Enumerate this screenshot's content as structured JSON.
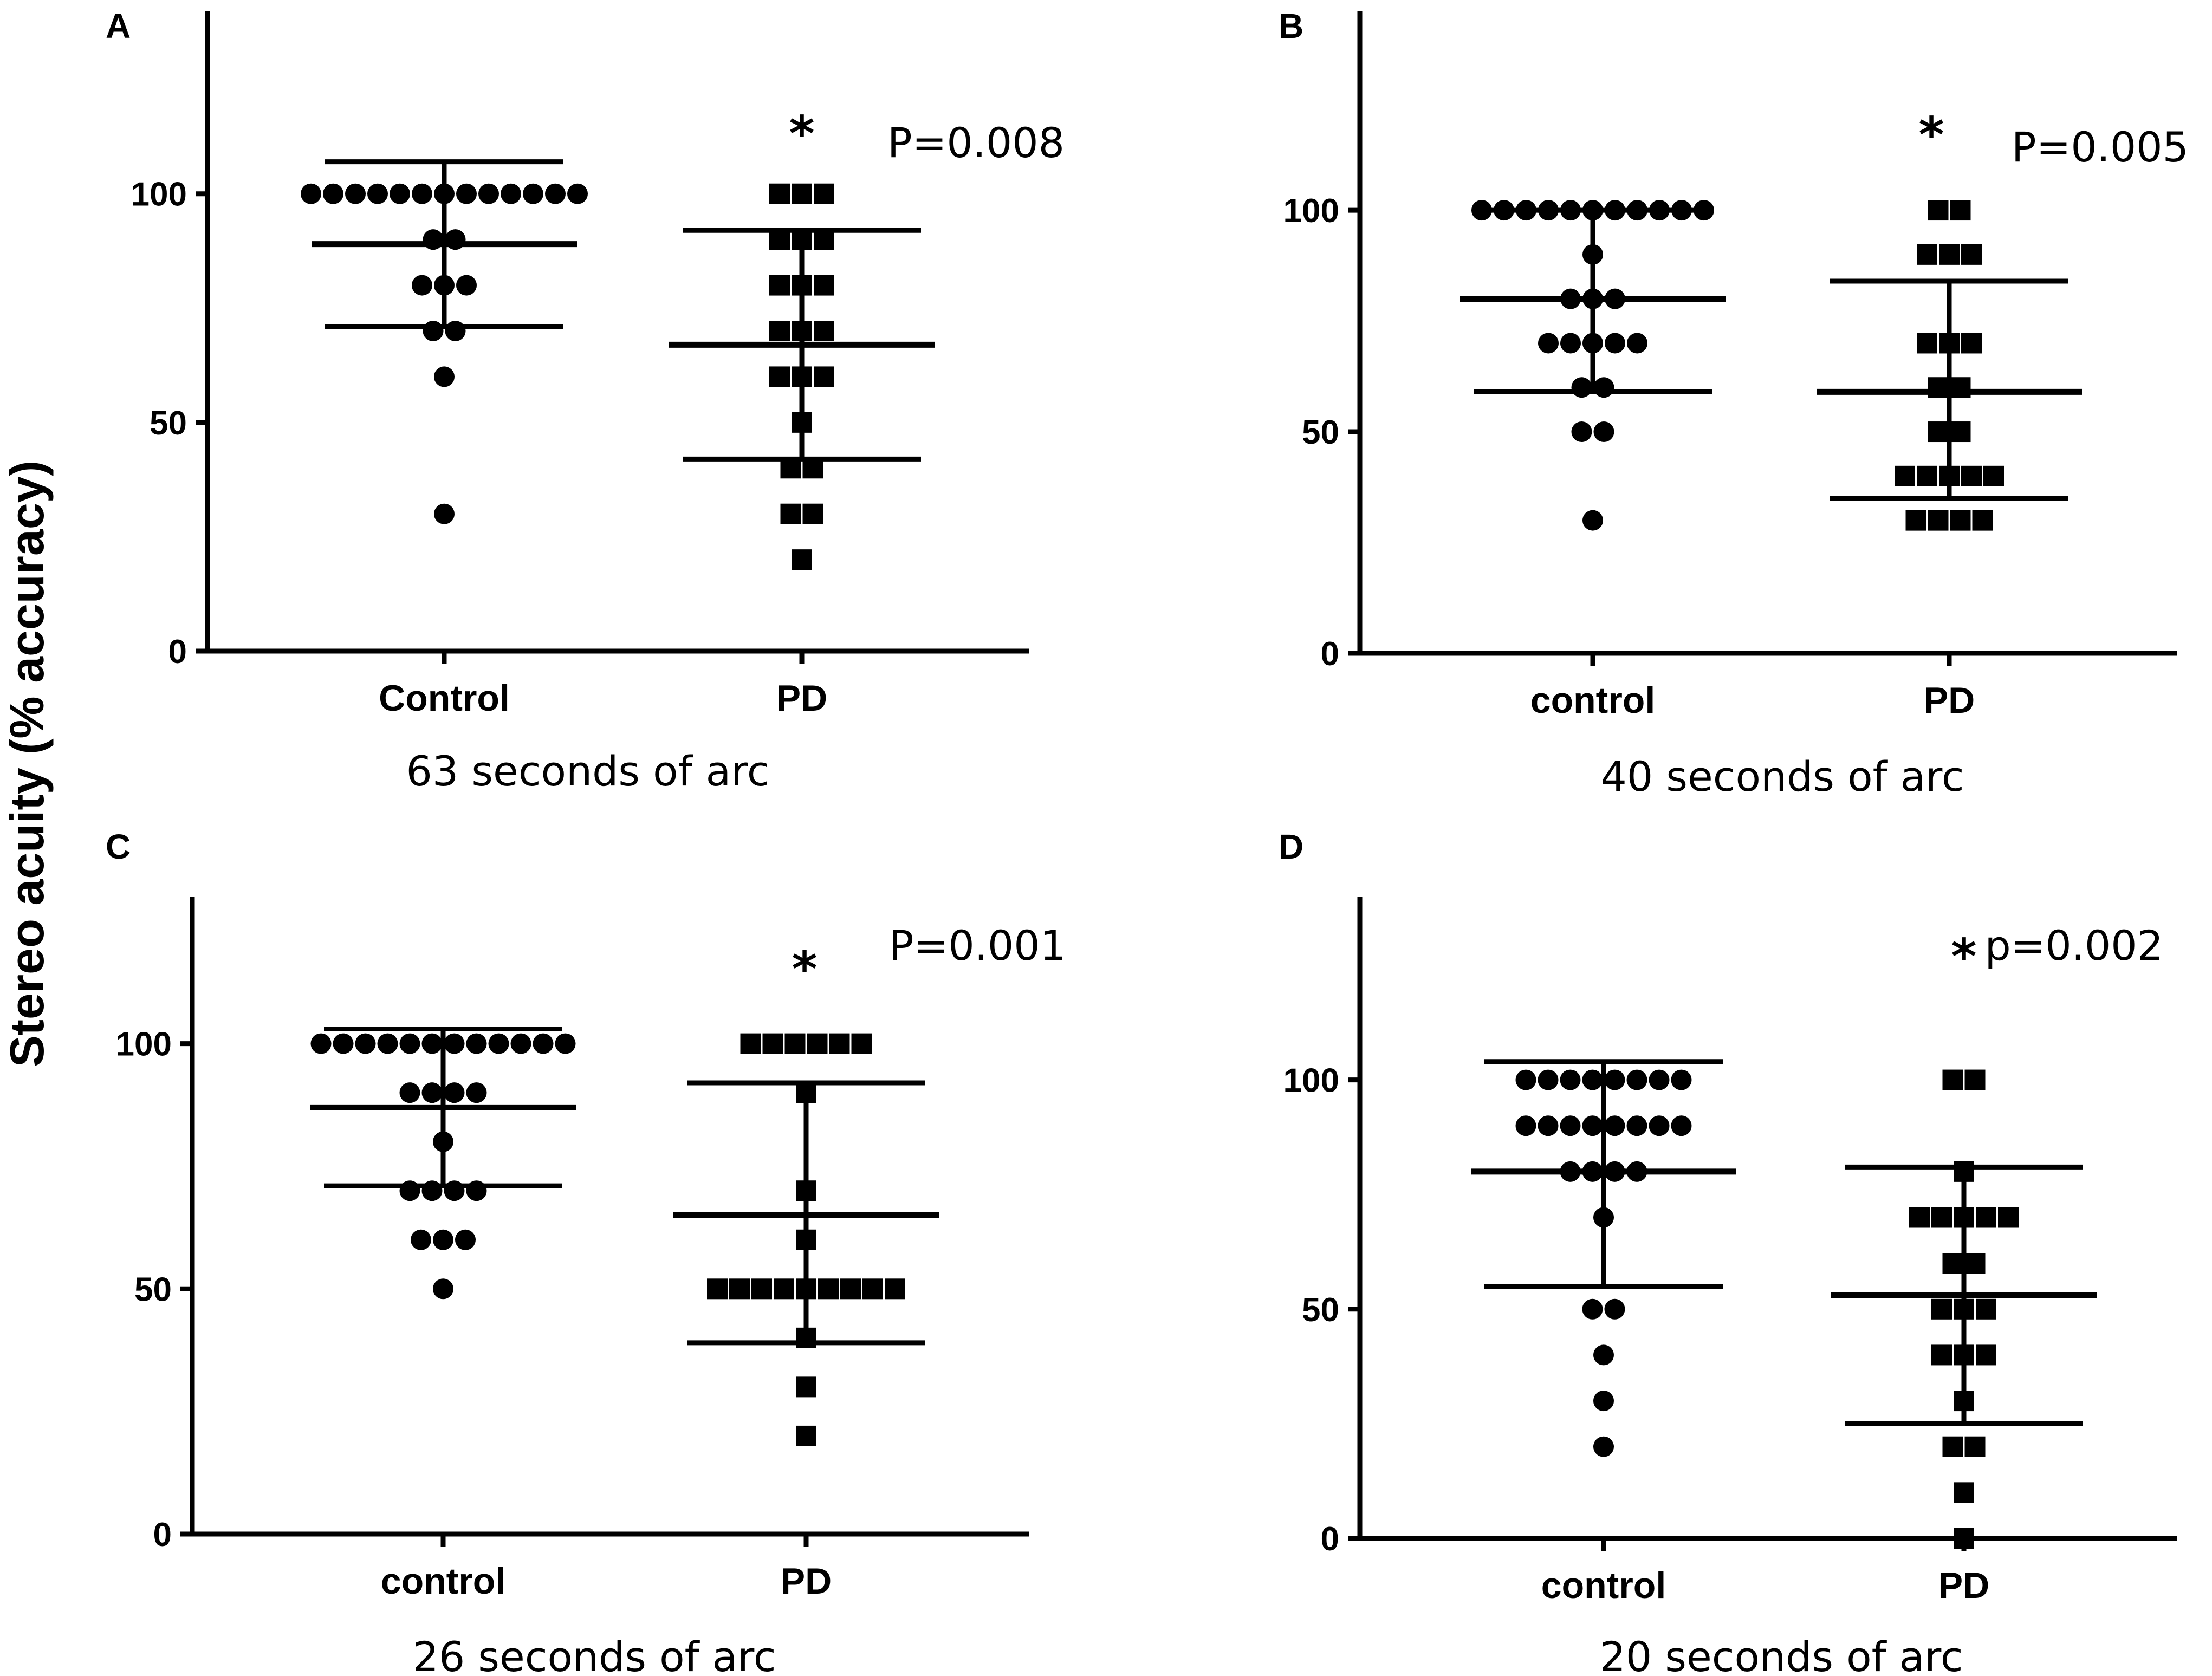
{
  "figure": {
    "ylabel": "Stereo acuity  (% accuracy)"
  },
  "chart_data": [
    {
      "type": "scatter",
      "panel": "A",
      "subtitle": "63 seconds of arc",
      "categories": [
        "Control",
        "PD"
      ],
      "ylim": [
        0,
        140
      ],
      "yticks": [
        0,
        50,
        100
      ],
      "ytick_labels": [
        "0",
        "50",
        "100"
      ],
      "p_value": "P=0.008",
      "significance": "*",
      "series": [
        {
          "name": "Control",
          "marker": "circle",
          "values": [
            100,
            100,
            100,
            100,
            100,
            100,
            100,
            100,
            100,
            100,
            100,
            100,
            100,
            90,
            90,
            80,
            80,
            80,
            70,
            70,
            60,
            30
          ],
          "mean": 89,
          "sd_upper": 107,
          "sd_lower": 71
        },
        {
          "name": "PD",
          "marker": "square",
          "values": [
            100,
            100,
            100,
            90,
            90,
            90,
            80,
            80,
            80,
            70,
            70,
            70,
            60,
            60,
            60,
            50,
            40,
            40,
            30,
            30,
            20
          ],
          "mean": 67,
          "sd_upper": 92,
          "sd_lower": 42
        }
      ]
    },
    {
      "type": "scatter",
      "panel": "B",
      "subtitle": "40 seconds of arc",
      "categories": [
        "control",
        "PD"
      ],
      "ylim": [
        0,
        145
      ],
      "yticks": [
        0,
        50,
        100
      ],
      "ytick_labels": [
        "0",
        "50",
        "100"
      ],
      "p_value": "P=0.005",
      "significance": "*",
      "series": [
        {
          "name": "control",
          "marker": "circle",
          "values": [
            100,
            100,
            100,
            100,
            100,
            100,
            100,
            100,
            100,
            100,
            100,
            90,
            80,
            80,
            80,
            70,
            70,
            70,
            70,
            70,
            60,
            60,
            50,
            50,
            30
          ],
          "mean": 80,
          "sd_upper": 100,
          "sd_lower": 59
        },
        {
          "name": "PD",
          "marker": "square",
          "values": [
            100,
            100,
            90,
            90,
            90,
            70,
            70,
            70,
            60,
            60,
            50,
            50,
            40,
            40,
            40,
            40,
            40,
            30,
            30,
            30,
            30
          ],
          "mean": 59,
          "sd_upper": 84,
          "sd_lower": 35
        }
      ]
    },
    {
      "type": "scatter",
      "panel": "C",
      "subtitle": "26 seconds of arc",
      "categories": [
        "control",
        "PD"
      ],
      "ylim": [
        0,
        130
      ],
      "yticks": [
        0,
        50,
        100
      ],
      "ytick_labels": [
        "0",
        "50",
        "100"
      ],
      "p_value": "P=0.001",
      "significance": "*",
      "series": [
        {
          "name": "control",
          "marker": "circle",
          "values": [
            100,
            100,
            100,
            100,
            100,
            100,
            100,
            100,
            100,
            100,
            100,
            100,
            90,
            90,
            90,
            90,
            80,
            70,
            70,
            70,
            70,
            60,
            60,
            60,
            50
          ],
          "mean": 87,
          "sd_upper": 103,
          "sd_lower": 71
        },
        {
          "name": "PD",
          "marker": "square",
          "values": [
            100,
            100,
            100,
            100,
            100,
            100,
            90,
            70,
            60,
            50,
            50,
            50,
            50,
            50,
            50,
            50,
            50,
            50,
            40,
            30,
            20
          ],
          "mean": 65,
          "sd_upper": 92,
          "sd_lower": 39
        }
      ]
    },
    {
      "type": "scatter",
      "panel": "D",
      "subtitle": "20 seconds of arc",
      "categories": [
        "control",
        "PD"
      ],
      "ylim": [
        0,
        140
      ],
      "yticks": [
        0,
        50,
        100
      ],
      "ytick_labels": [
        "0",
        "50",
        "100"
      ],
      "p_value": "p=0.002",
      "significance": "*",
      "series": [
        {
          "name": "control",
          "marker": "circle",
          "values": [
            100,
            100,
            100,
            100,
            100,
            100,
            100,
            100,
            90,
            90,
            90,
            90,
            90,
            90,
            90,
            90,
            80,
            80,
            80,
            80,
            70,
            50,
            50,
            40,
            30,
            20
          ],
          "mean": 80,
          "sd_upper": 104,
          "sd_lower": 55
        },
        {
          "name": "PD",
          "marker": "square",
          "values": [
            100,
            100,
            80,
            70,
            70,
            70,
            70,
            70,
            60,
            60,
            50,
            50,
            50,
            40,
            40,
            40,
            30,
            20,
            20,
            10,
            0
          ],
          "mean": 53,
          "sd_upper": 81,
          "sd_lower": 25
        }
      ]
    }
  ]
}
